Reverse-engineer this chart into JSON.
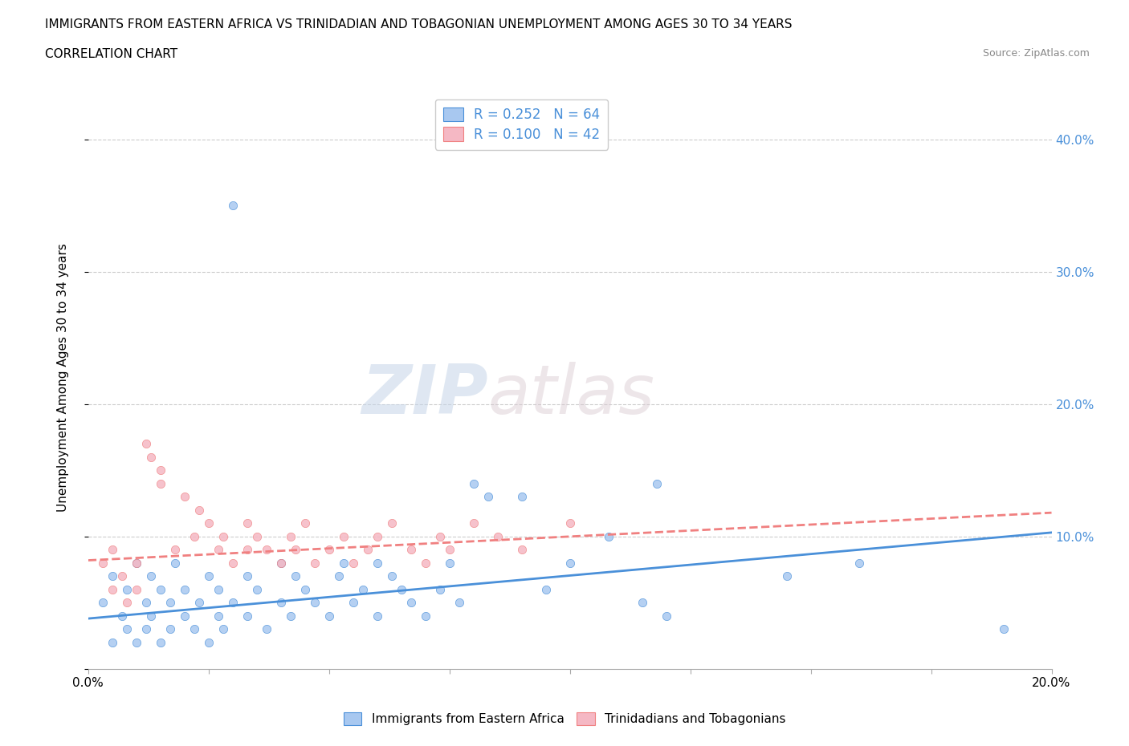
{
  "title_line1": "IMMIGRANTS FROM EASTERN AFRICA VS TRINIDADIAN AND TOBAGONIAN UNEMPLOYMENT AMONG AGES 30 TO 34 YEARS",
  "title_line2": "CORRELATION CHART",
  "source_text": "Source: ZipAtlas.com",
  "ylabel": "Unemployment Among Ages 30 to 34 years",
  "xlim": [
    0.0,
    0.2
  ],
  "ylim": [
    0.0,
    0.44
  ],
  "xticks": [
    0.0,
    0.025,
    0.05,
    0.075,
    0.1,
    0.125,
    0.15,
    0.175,
    0.2
  ],
  "ytick_positions": [
    0.0,
    0.1,
    0.2,
    0.3,
    0.4
  ],
  "ytick_labels": [
    "",
    "10.0%",
    "20.0%",
    "30.0%",
    "40.0%"
  ],
  "blue_R": 0.252,
  "blue_N": 64,
  "pink_R": 0.1,
  "pink_N": 42,
  "blue_color": "#a8c8f0",
  "pink_color": "#f5b8c4",
  "blue_line_color": "#4a90d9",
  "pink_line_color": "#f08080",
  "legend_label_blue": "Immigrants from Eastern Africa",
  "legend_label_pink": "Trinidadians and Tobagonians",
  "watermark_zip": "ZIP",
  "watermark_atlas": "atlas",
  "blue_trend_start": 0.038,
  "blue_trend_end": 0.103,
  "pink_trend_start": 0.082,
  "pink_trend_end": 0.118,
  "blue_scatter_x": [
    0.003,
    0.005,
    0.005,
    0.007,
    0.008,
    0.008,
    0.01,
    0.01,
    0.012,
    0.012,
    0.013,
    0.013,
    0.015,
    0.015,
    0.017,
    0.017,
    0.018,
    0.02,
    0.02,
    0.022,
    0.023,
    0.025,
    0.025,
    0.027,
    0.027,
    0.028,
    0.03,
    0.03,
    0.033,
    0.033,
    0.035,
    0.037,
    0.04,
    0.04,
    0.042,
    0.043,
    0.045,
    0.047,
    0.05,
    0.052,
    0.053,
    0.055,
    0.057,
    0.06,
    0.06,
    0.063,
    0.065,
    0.067,
    0.07,
    0.073,
    0.075,
    0.077,
    0.08,
    0.083,
    0.09,
    0.095,
    0.1,
    0.108,
    0.115,
    0.118,
    0.12,
    0.145,
    0.16,
    0.19
  ],
  "blue_scatter_y": [
    0.05,
    0.02,
    0.07,
    0.04,
    0.03,
    0.06,
    0.02,
    0.08,
    0.03,
    0.05,
    0.04,
    0.07,
    0.02,
    0.06,
    0.03,
    0.05,
    0.08,
    0.04,
    0.06,
    0.03,
    0.05,
    0.02,
    0.07,
    0.04,
    0.06,
    0.03,
    0.35,
    0.05,
    0.04,
    0.07,
    0.06,
    0.03,
    0.08,
    0.05,
    0.04,
    0.07,
    0.06,
    0.05,
    0.04,
    0.07,
    0.08,
    0.05,
    0.06,
    0.04,
    0.08,
    0.07,
    0.06,
    0.05,
    0.04,
    0.06,
    0.08,
    0.05,
    0.14,
    0.13,
    0.13,
    0.06,
    0.08,
    0.1,
    0.05,
    0.14,
    0.04,
    0.07,
    0.08,
    0.03
  ],
  "pink_scatter_x": [
    0.003,
    0.005,
    0.005,
    0.007,
    0.008,
    0.01,
    0.01,
    0.012,
    0.013,
    0.015,
    0.015,
    0.018,
    0.02,
    0.022,
    0.023,
    0.025,
    0.027,
    0.028,
    0.03,
    0.033,
    0.033,
    0.035,
    0.037,
    0.04,
    0.042,
    0.043,
    0.045,
    0.047,
    0.05,
    0.053,
    0.055,
    0.058,
    0.06,
    0.063,
    0.067,
    0.07,
    0.073,
    0.075,
    0.08,
    0.085,
    0.09,
    0.1
  ],
  "pink_scatter_y": [
    0.08,
    0.06,
    0.09,
    0.07,
    0.05,
    0.08,
    0.06,
    0.17,
    0.16,
    0.15,
    0.14,
    0.09,
    0.13,
    0.1,
    0.12,
    0.11,
    0.09,
    0.1,
    0.08,
    0.09,
    0.11,
    0.1,
    0.09,
    0.08,
    0.1,
    0.09,
    0.11,
    0.08,
    0.09,
    0.1,
    0.08,
    0.09,
    0.1,
    0.11,
    0.09,
    0.08,
    0.1,
    0.09,
    0.11,
    0.1,
    0.09,
    0.11
  ]
}
